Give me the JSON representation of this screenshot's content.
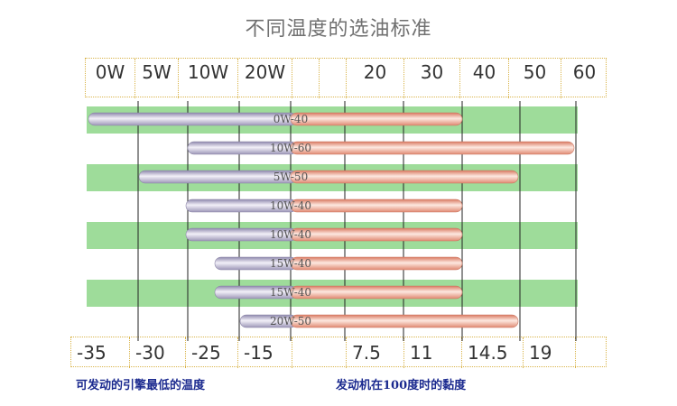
{
  "title": "不同温度的选油标准",
  "top_axis": {
    "labels": [
      "0W",
      "5W",
      "10W",
      "20W",
      "",
      "20",
      "30",
      "40",
      "50",
      "60"
    ]
  },
  "bottom_axis": {
    "labels": [
      "-35",
      "-30",
      "-25",
      "-15",
      "",
      "7.5",
      "11",
      "14.5",
      "19",
      ""
    ]
  },
  "bottom_captions": {
    "left": "可发动的引擎最低的温度",
    "right": "发动机在100度时的黏度"
  },
  "colors": {
    "stripe_green": "#9edc9a",
    "cold_part": "#b9b4cc",
    "hot_part": "#f2a790",
    "grid_line": "#222222",
    "caption_blue": "#1b2a8f"
  },
  "chart_data": {
    "type": "bar",
    "title": "不同温度的选油标准",
    "x_top_ticks": [
      "0W",
      "5W",
      "10W",
      "20W",
      "20",
      "30",
      "40",
      "50",
      "60"
    ],
    "x_bottom_ticks": [
      "-35",
      "-30",
      "-25",
      "-15",
      "7.5",
      "11",
      "14.5",
      "19"
    ],
    "bars": [
      {
        "label": "0W-40",
        "low_grade": "0W",
        "high_grade": "40",
        "low_temp": -35,
        "high_viscosity": 14.5
      },
      {
        "label": "10W-60",
        "low_grade": "10W",
        "high_grade": "60",
        "low_temp": -25,
        "high_viscosity": null
      },
      {
        "label": "5W-50",
        "low_grade": "5W",
        "high_grade": "50",
        "low_temp": -30,
        "high_viscosity": 19
      },
      {
        "label": "10W-40",
        "low_grade": "10W",
        "high_grade": "40",
        "low_temp": -25,
        "high_viscosity": 14.5
      },
      {
        "label": "10W-40",
        "low_grade": "10W",
        "high_grade": "40",
        "low_temp": -25,
        "high_viscosity": 14.5
      },
      {
        "label": "15W-40",
        "low_grade": "15W",
        "high_grade": "40",
        "low_temp": null,
        "high_viscosity": 14.5
      },
      {
        "label": "15W-40",
        "low_grade": "15W",
        "high_grade": "40",
        "low_temp": null,
        "high_viscosity": 14.5
      },
      {
        "label": "20W-50",
        "low_grade": "20W",
        "high_grade": "50",
        "low_temp": -15,
        "high_viscosity": 19
      }
    ],
    "legend": ""
  }
}
